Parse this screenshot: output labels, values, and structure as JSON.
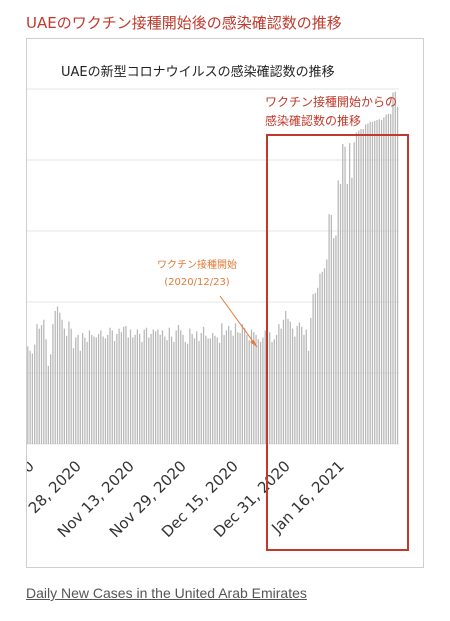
{
  "headline": "UAEのワクチン接種開始後の感染確認数の推移",
  "caption_link": "Daily New Cases in the United Arab Emirates",
  "colors": {
    "bar": "#b7b7b7",
    "highlight": "#c0392b",
    "annotation": "#e07b39",
    "grid": "#e6e6e6"
  },
  "chart_data": {
    "type": "bar",
    "title": "UAEの新型コロナウイルスの感染確認数の推移",
    "xlabel": "",
    "ylabel": "",
    "grid": true,
    "ylim": [
      0,
      4000
    ],
    "tick_labels": [
      "0",
      "28, 2020",
      "Nov 13, 2020",
      "Nov 29, 2020",
      "Dec 15, 2020",
      "Dec 31, 2020",
      "Jan 16, 2021"
    ],
    "values": [
      1100,
      1050,
      1020,
      1120,
      1350,
      1300,
      1340,
      1400,
      1180,
      880,
      1010,
      1350,
      1500,
      1550,
      1480,
      1400,
      1300,
      1220,
      1380,
      1300,
      1080,
      1200,
      1230,
      1050,
      1250,
      1200,
      1150,
      1280,
      1230,
      1210,
      1200,
      1240,
      1280,
      1210,
      1190,
      1230,
      1310,
      1280,
      1160,
      1240,
      1300,
      1260,
      1320,
      1330,
      1200,
      1290,
      1200,
      1230,
      1290,
      1240,
      1150,
      1290,
      1310,
      1200,
      1240,
      1290,
      1270,
      1290,
      1230,
      1280,
      1210,
      1170,
      1310,
      1210,
      1150,
      1280,
      1340,
      1280,
      1230,
      1150,
      1130,
      1300,
      1240,
      1190,
      1270,
      1160,
      1250,
      1320,
      1220,
      1190,
      1190,
      1250,
      1220,
      1200,
      1140,
      1360,
      1230,
      1280,
      1330,
      1280,
      1220,
      1360,
      1260,
      1250,
      1350,
      1310,
      1230,
      1170,
      1290,
      1260,
      1230,
      1180,
      1150,
      1200,
      1280,
      1200,
      1260,
      1150,
      1180,
      1230,
      1350,
      1300,
      1400,
      1500,
      1410,
      1380,
      1300,
      1210,
      1330,
      1370,
      1320,
      1230,
      1290,
      1050,
      1420,
      1690,
      1700,
      1760,
      1920,
      1940,
      1980,
      2080,
      2590,
      2580,
      2320,
      2350,
      2970,
      2930,
      3380,
      3350,
      2930,
      3390,
      3000,
      3400,
      3510,
      3530,
      3550,
      3550,
      3600,
      3610,
      3630,
      3630,
      3640,
      3650,
      3660,
      3650,
      3680,
      3710,
      3720,
      3720,
      3960,
      3970,
      3800
    ]
  },
  "annotations": {
    "start_label_line1": "ワクチン接種開始",
    "start_label_line2": "(2020/12/23)",
    "box_label_line1": "ワクチン接種開始からの",
    "box_label_line2": "感染確認数の推移"
  }
}
